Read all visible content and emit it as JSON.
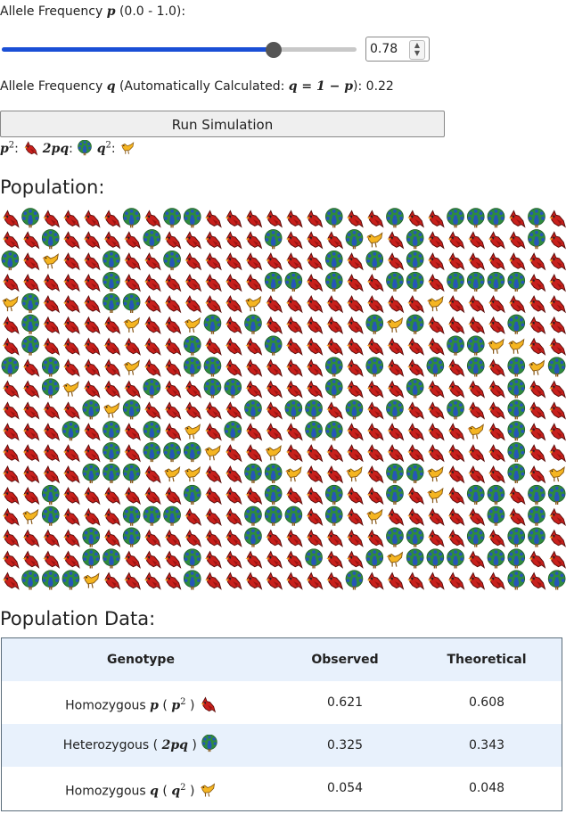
{
  "controls": {
    "p_label_prefix": "Allele Frequency",
    "p_symbol": "p",
    "p_label_suffix": "(0.0 - 1.0):",
    "p_value": 0.78,
    "p_value_text": "0.78",
    "q_label_prefix": "Allele Frequency",
    "q_symbol": "q",
    "q_label_mid": "(Automatically Calculated:",
    "q_formula": "q = 1 − p",
    "q_label_end": "):",
    "q_value_text": "0.22",
    "run_button": "Run Simulation"
  },
  "legend": {
    "p2_label": "p",
    "p2_sup": "2",
    "twopq_label": "2pq",
    "q2_label": "q",
    "q2_sup": "2"
  },
  "population": {
    "heading": "Population:",
    "columns": 28,
    "rows": 18,
    "icons": {
      "homozygous_p": "cardinal-bird-icon",
      "heterozygous": "peacock-icon",
      "homozygous_q": "yellow-bird-icon"
    },
    "colors": {
      "cardinal": "#c8201c",
      "peacock_green": "#2e8b3e",
      "peacock_blue": "#2656b8",
      "yellow": "#f5b521"
    }
  },
  "data_table": {
    "heading": "Population Data:",
    "headers": [
      "Genotype",
      "Observed",
      "Theoretical"
    ],
    "rows": [
      {
        "name": "Homozygous",
        "sym": "p",
        "paren_l": "(",
        "math": "p",
        "sup": "2",
        "paren_r": ")",
        "observed": "0.621",
        "theoretical": "0.608",
        "icon": "cardinal-bird-icon"
      },
      {
        "name": "Heterozygous",
        "sym": "",
        "paren_l": "(",
        "math": "2pq",
        "sup": "",
        "paren_r": ")",
        "observed": "0.325",
        "theoretical": "0.343",
        "icon": "peacock-icon"
      },
      {
        "name": "Homozygous",
        "sym": "q",
        "paren_l": "(",
        "math": "q",
        "sup": "2",
        "paren_r": ")",
        "observed": "0.054",
        "theoretical": "0.048",
        "icon": "yellow-bird-icon"
      }
    ],
    "row_colors": [
      "#ffffff",
      "#e8f1fc",
      "#ffffff"
    ],
    "header_color": "#e8f1fc"
  }
}
